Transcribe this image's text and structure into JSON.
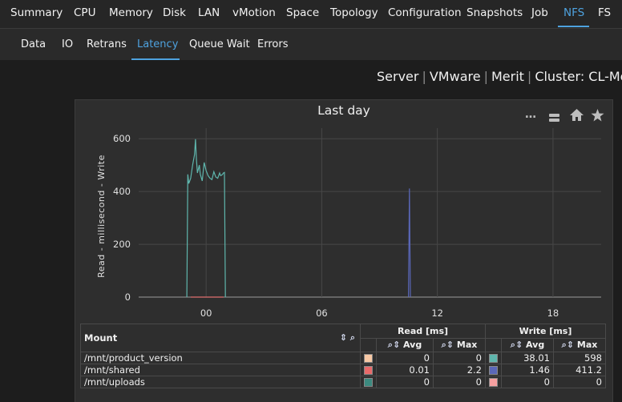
{
  "topnav": {
    "items": [
      "Summary",
      "CPU",
      "Memory",
      "Disk",
      "LAN",
      "vMotion",
      "Space",
      "Topology",
      "Configuration",
      "Snapshots",
      "Job",
      "NFS",
      "FS"
    ],
    "active": "NFS"
  },
  "subnav": {
    "items": [
      "Data",
      "IO",
      "Retrans",
      "Latency",
      "Queue Wait",
      "Errors"
    ],
    "active": "Latency"
  },
  "breadcrumb": [
    "Server",
    "VMware",
    "Merit",
    "Cluster: CL-Mer"
  ],
  "chart": {
    "title": "Last day",
    "more_icon": "ellipsis-icon",
    "icons": [
      "stack-icon",
      "home-icon",
      "star-icon"
    ]
  },
  "chart_data": {
    "type": "line",
    "title": "Last day",
    "ylabel": "Read - millisecond - Write",
    "xlabel": "",
    "x_ticks": [
      "00",
      "06",
      "12",
      "18"
    ],
    "y_ticks": [
      "0",
      "200",
      "400",
      "600"
    ],
    "ylim": [
      0,
      640
    ],
    "xlim_hours": [
      -3.5,
      20.5
    ],
    "grid": true,
    "series": [
      {
        "color": "#5fb6ad",
        "points": [
          [
            -1.0,
            0
          ],
          [
            -0.95,
            465
          ],
          [
            -0.9,
            430
          ],
          [
            -0.8,
            450
          ],
          [
            -0.7,
            500
          ],
          [
            -0.6,
            540
          ],
          [
            -0.55,
            598
          ],
          [
            -0.5,
            520
          ],
          [
            -0.45,
            470
          ],
          [
            -0.35,
            500
          ],
          [
            -0.3,
            465
          ],
          [
            -0.2,
            440
          ],
          [
            -0.1,
            510
          ],
          [
            0,
            480
          ],
          [
            0.1,
            460
          ],
          [
            0.2,
            450
          ],
          [
            0.3,
            445
          ],
          [
            0.4,
            475
          ],
          [
            0.5,
            455
          ],
          [
            0.6,
            450
          ],
          [
            0.7,
            470
          ],
          [
            0.75,
            460
          ],
          [
            0.8,
            462
          ],
          [
            0.85,
            465
          ],
          [
            0.9,
            470
          ],
          [
            0.95,
            472
          ],
          [
            1.0,
            0
          ]
        ]
      },
      {
        "color": "#5a67b8",
        "points": [
          [
            10.5,
            0
          ],
          [
            10.55,
            411.2
          ],
          [
            10.6,
            0
          ]
        ]
      },
      {
        "color": "#e07070",
        "points": [
          [
            -0.8,
            0
          ],
          [
            0.9,
            0
          ]
        ]
      }
    ]
  },
  "legend": {
    "mount_header": "Mount",
    "read_header": "Read [ms]",
    "write_header": "Write [ms]",
    "avg": "Avg",
    "max": "Max",
    "rows": [
      {
        "mount": "/mnt/product_version",
        "read_color": "#f7c8a5",
        "read_avg": "0",
        "read_max": "0",
        "write_color": "#5fb6ad",
        "write_avg": "38.01",
        "write_max": "598"
      },
      {
        "mount": "/mnt/shared",
        "read_color": "#e86a6a",
        "read_avg": "0.01",
        "read_max": "2.2",
        "write_color": "#5a67b8",
        "write_avg": "1.46",
        "write_max": "411.2"
      },
      {
        "mount": "/mnt/uploads",
        "read_color": "#3c8a7f",
        "read_avg": "0",
        "read_max": "0",
        "write_color": "#f6a0a0",
        "write_avg": "0",
        "write_max": "0"
      }
    ]
  }
}
